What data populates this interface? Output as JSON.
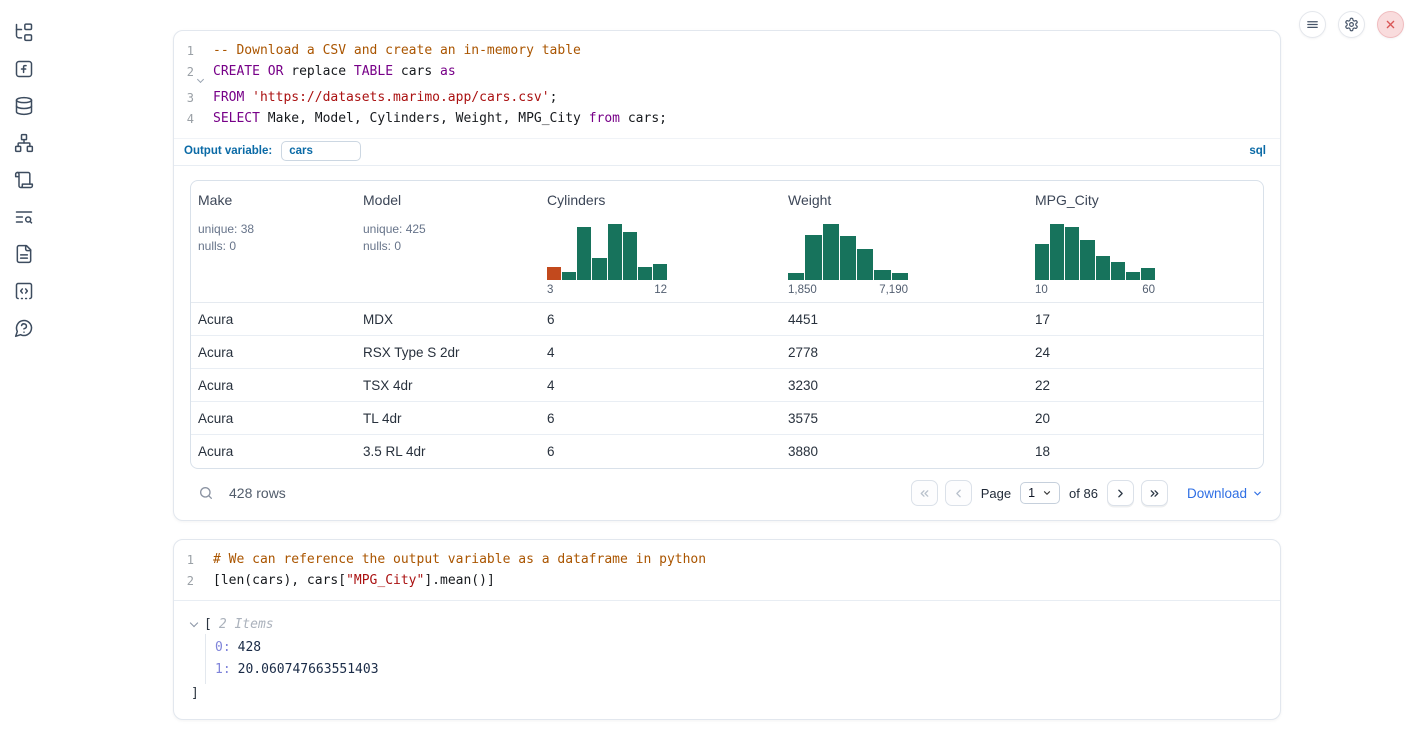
{
  "sidebar": {
    "icons": [
      "file-tree",
      "function-square",
      "database",
      "dependency-graph",
      "scroll",
      "logs-search",
      "document",
      "snippets",
      "help"
    ]
  },
  "topbar": {
    "buttons": [
      "menu",
      "settings",
      "shutdown"
    ]
  },
  "sql_cell": {
    "fold_line": 2,
    "code_lines": [
      [
        {
          "c": "com",
          "t": "-- Download a CSV and create an in-memory table"
        }
      ],
      [
        {
          "c": "kw",
          "t": "CREATE"
        },
        {
          "c": "def",
          "t": " "
        },
        {
          "c": "kw",
          "t": "OR"
        },
        {
          "c": "def",
          "t": " replace "
        },
        {
          "c": "kw",
          "t": "TABLE"
        },
        {
          "c": "def",
          "t": " cars "
        },
        {
          "c": "kw",
          "t": "as"
        }
      ],
      [
        {
          "c": "kw",
          "t": "FROM"
        },
        {
          "c": "def",
          "t": " "
        },
        {
          "c": "str",
          "t": "'https://datasets.marimo.app/cars.csv'"
        },
        {
          "c": "def",
          "t": ";"
        }
      ],
      [
        {
          "c": "kw",
          "t": "SELECT"
        },
        {
          "c": "def",
          "t": " Make, Model, Cylinders, Weight, MPG_City "
        },
        {
          "c": "kw",
          "t": "from"
        },
        {
          "c": "def",
          "t": " cars;"
        }
      ]
    ],
    "output_variable_label": "Output variable:",
    "output_variable_value": "cars",
    "language_badge": "sql",
    "table": {
      "columns": [
        {
          "name": "Make",
          "unique": "unique: 38",
          "nulls": "nulls: 0"
        },
        {
          "name": "Model",
          "unique": "unique: 425",
          "nulls": "nulls: 0"
        },
        {
          "name": "Cylinders"
        },
        {
          "name": "Weight"
        },
        {
          "name": "MPG_City"
        }
      ],
      "rows": [
        [
          "Acura",
          "MDX",
          "6",
          "4451",
          "17"
        ],
        [
          "Acura",
          "RSX Type S 2dr",
          "4",
          "2778",
          "24"
        ],
        [
          "Acura",
          "TSX 4dr",
          "4",
          "3230",
          "22"
        ],
        [
          "Acura",
          "TL 4dr",
          "6",
          "3575",
          "20"
        ],
        [
          "Acura",
          "3.5 RL 4dr",
          "6",
          "3880",
          "18"
        ]
      ],
      "footer": {
        "row_count": "428 rows",
        "page_label": "Page",
        "page_value": "1",
        "of_label": "of 86",
        "download_label": "Download"
      }
    }
  },
  "python_cell": {
    "code_lines": [
      [
        {
          "c": "com",
          "t": "# We can reference the output variable as a dataframe in python"
        }
      ],
      [
        {
          "c": "def",
          "t": "[len(cars), cars["
        },
        {
          "c": "str",
          "t": "\"MPG_City\""
        },
        {
          "c": "def",
          "t": "].mean()]"
        }
      ]
    ],
    "output": {
      "bracket_open": "[",
      "items_label": "2 Items",
      "entries": [
        {
          "key": "0:",
          "value": "428"
        },
        {
          "key": "1:",
          "value": "20.060747663551403"
        }
      ],
      "bracket_close": "]"
    }
  },
  "chart_data": [
    {
      "type": "bar",
      "title": "Cylinders histogram",
      "tick_labels": [
        "3",
        "12"
      ],
      "x_range": [
        3,
        12
      ],
      "relative_heights": [
        0.23,
        0.14,
        0.94,
        0.4,
        1.0,
        0.86,
        0.23,
        0.29
      ],
      "bar_color": "#17735c",
      "first_bar_color": "#c2491d",
      "legend": "off",
      "grid": "off"
    },
    {
      "type": "bar",
      "title": "Weight histogram",
      "tick_labels": [
        "1,850",
        "7,190"
      ],
      "x_range": [
        1850,
        7190
      ],
      "relative_heights": [
        0.13,
        0.8,
        1.0,
        0.78,
        0.55,
        0.18,
        0.13
      ],
      "bar_color": "#17735c",
      "legend": "off",
      "grid": "off"
    },
    {
      "type": "bar",
      "title": "MPG_City histogram",
      "tick_labels": [
        "10",
        "60"
      ],
      "x_range": [
        10,
        60
      ],
      "relative_heights": [
        0.65,
        1.0,
        0.94,
        0.71,
        0.42,
        0.32,
        0.14,
        0.22
      ],
      "bar_color": "#17735c",
      "legend": "off",
      "grid": "off"
    }
  ],
  "colors": {
    "hist_green": "#17735c",
    "hist_orange": "#c2491d",
    "accent_blue": "#0a6aa6",
    "link_blue": "#2f6fe4",
    "close_red": "#d95757"
  }
}
